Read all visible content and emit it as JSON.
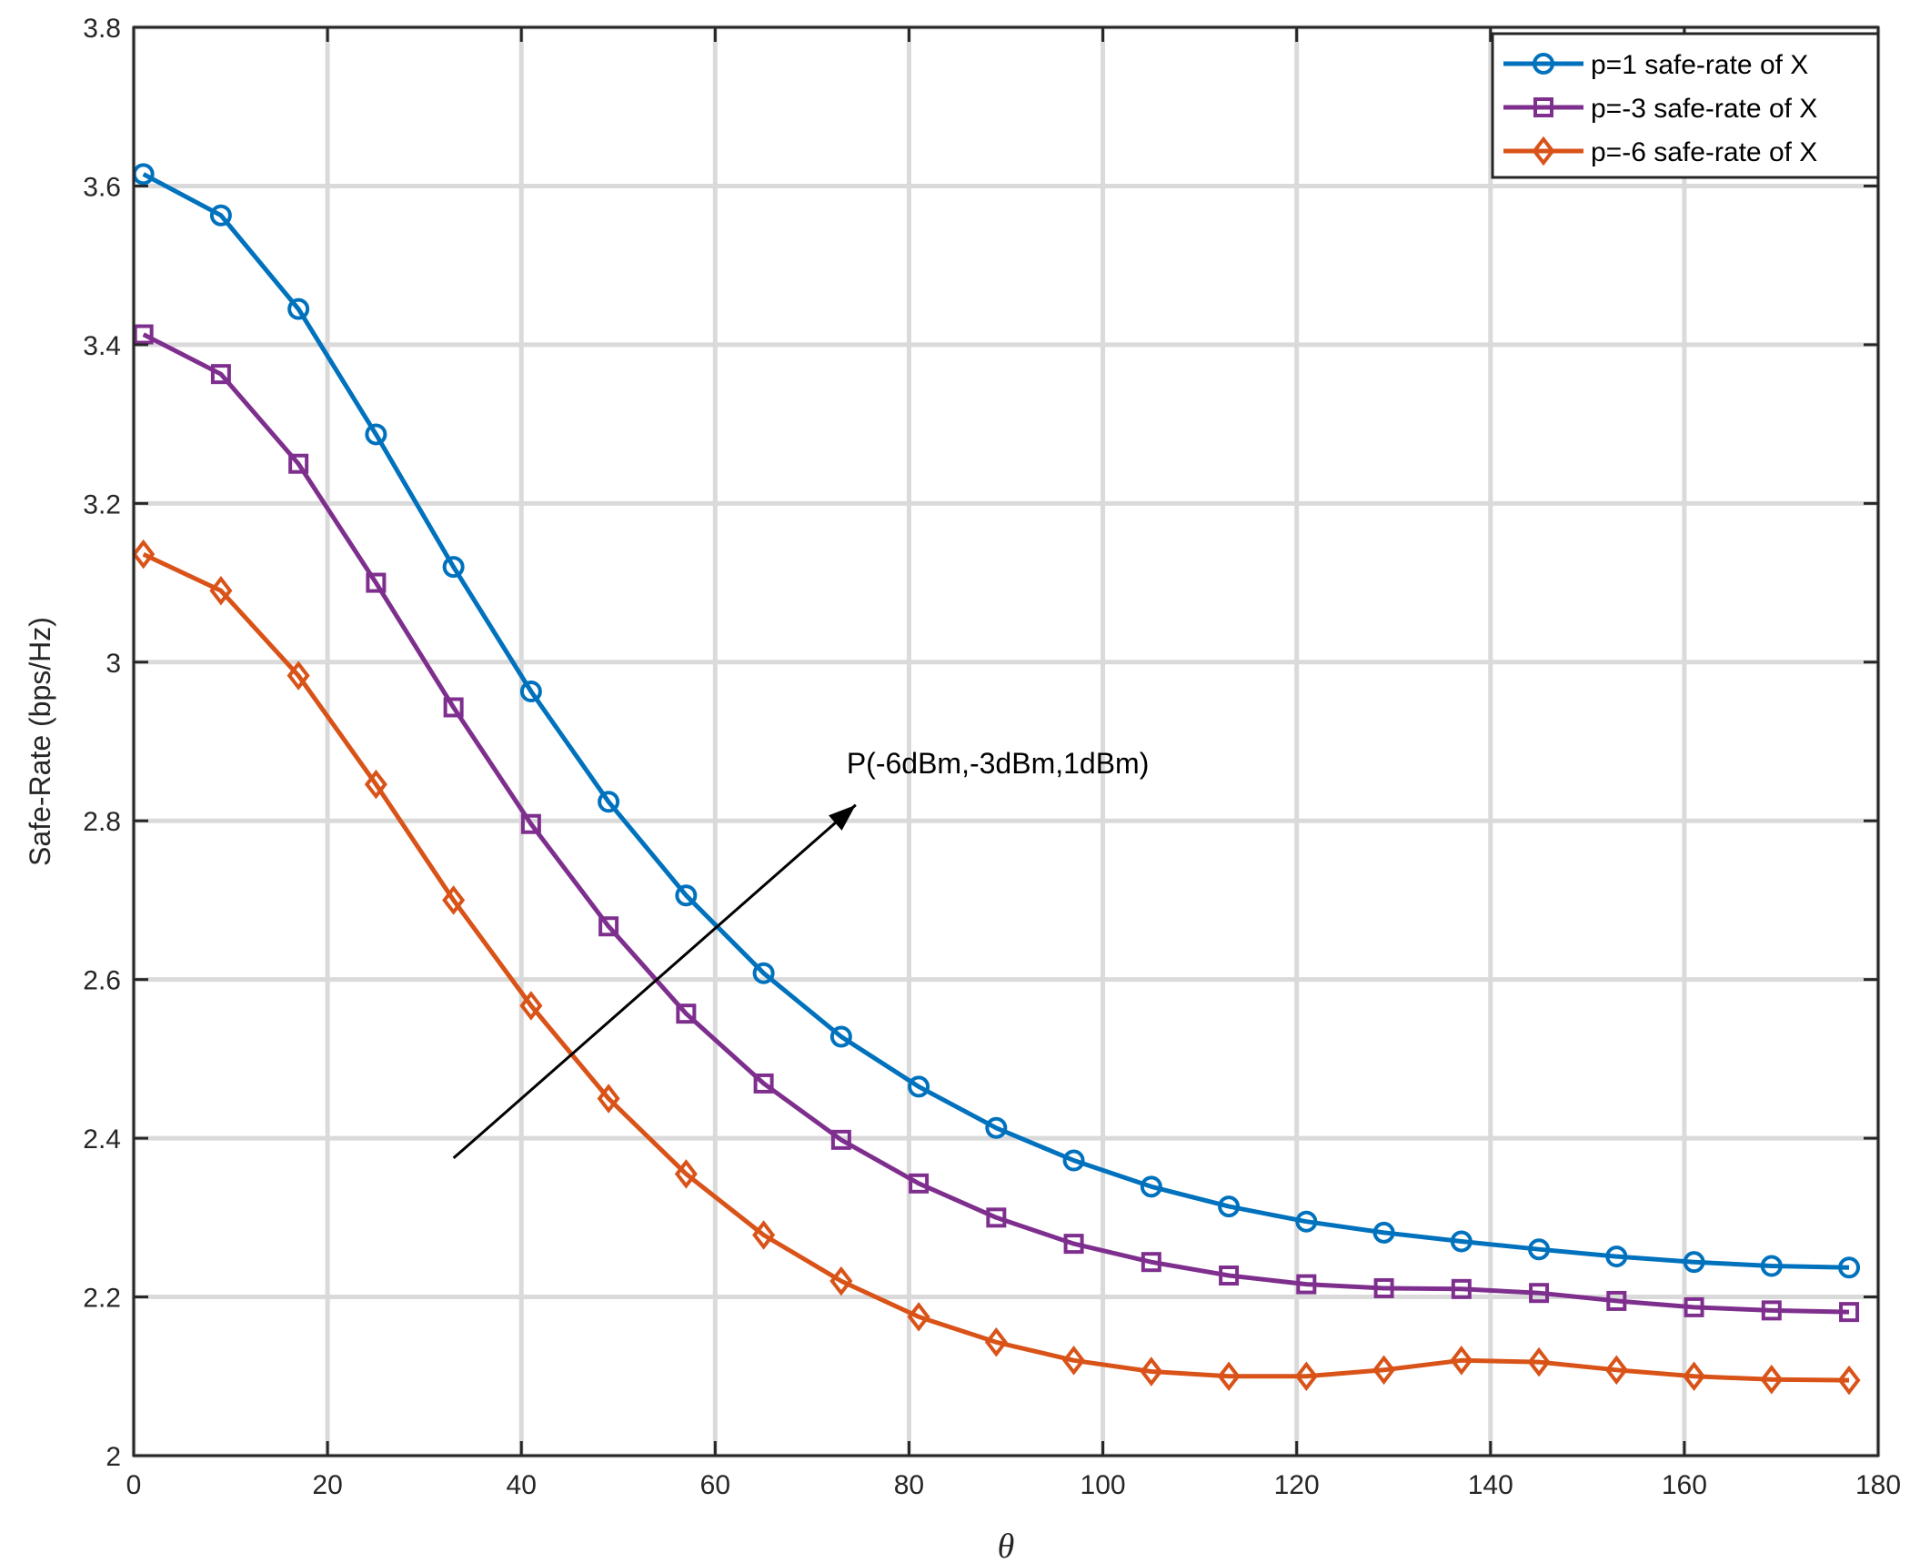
{
  "chart_data": {
    "type": "line",
    "title": "",
    "xlabel": "θ",
    "ylabel": "Safe-Rate (bps/Hz)",
    "xlim": [
      0,
      180
    ],
    "ylim": [
      2,
      3.8
    ],
    "xticks": [
      0,
      20,
      40,
      60,
      80,
      100,
      120,
      140,
      160,
      180
    ],
    "yticks": [
      2,
      2.2,
      2.4,
      2.6,
      2.8,
      3,
      3.2,
      3.4,
      3.6,
      3.8
    ],
    "xtick_labels": [
      "0",
      "20",
      "40",
      "60",
      "80",
      "100",
      "120",
      "140",
      "160",
      "180"
    ],
    "ytick_labels": [
      "2",
      "2.2",
      "2.4",
      "2.6",
      "2.8",
      "3",
      "3.2",
      "3.4",
      "3.6",
      "3.8"
    ],
    "grid": true,
    "legend_position": "top-right",
    "x": [
      1,
      9,
      17,
      25,
      33,
      41,
      49,
      57,
      65,
      73,
      81,
      89,
      97,
      105,
      113,
      121,
      129,
      137,
      145,
      153,
      161,
      169,
      177
    ],
    "series": [
      {
        "name": "p=1 safe-rate of X",
        "color": "#0072BD",
        "marker": "circle",
        "values": [
          3.615,
          3.563,
          3.445,
          3.287,
          3.12,
          2.963,
          2.824,
          2.706,
          2.608,
          2.528,
          2.465,
          2.413,
          2.372,
          2.339,
          2.314,
          2.295,
          2.281,
          2.27,
          2.26,
          2.251,
          2.244,
          2.239,
          2.237
        ]
      },
      {
        "name": "p=-3 safe-rate of X",
        "color": "#7E2F8E",
        "marker": "square",
        "values": [
          3.413,
          3.363,
          3.25,
          3.1,
          2.943,
          2.796,
          2.667,
          2.557,
          2.469,
          2.398,
          2.343,
          2.3,
          2.267,
          2.244,
          2.227,
          2.216,
          2.211,
          2.21,
          2.205,
          2.195,
          2.187,
          2.183,
          2.181
        ]
      },
      {
        "name": "p=-6 safe-rate of X",
        "color": "#D95319",
        "marker": "diamond",
        "values": [
          3.136,
          3.09,
          2.983,
          2.846,
          2.7,
          2.567,
          2.45,
          2.355,
          2.278,
          2.22,
          2.175,
          2.143,
          2.12,
          2.106,
          2.1,
          2.1,
          2.108,
          2.12,
          2.118,
          2.108,
          2.1,
          2.096,
          2.095
        ]
      }
    ],
    "annotations": [
      {
        "text": "P(-6dBm,-3dBm,1dBm)",
        "arrow_from": [
          33,
          2.375
        ],
        "arrow_to": [
          74.5,
          2.82
        ],
        "text_anchor_point": [
          74.5,
          2.86
        ]
      }
    ]
  }
}
